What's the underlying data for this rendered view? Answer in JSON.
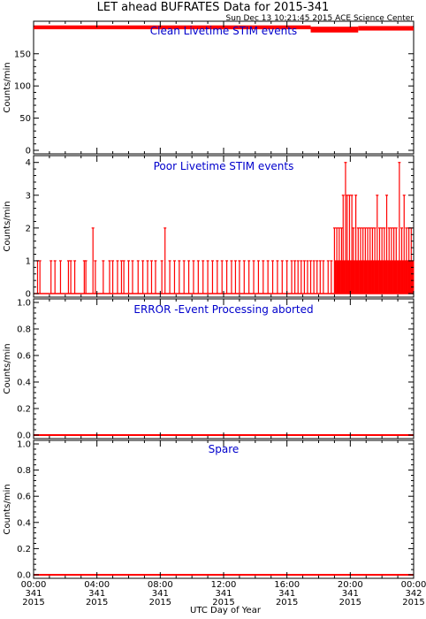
{
  "header": {
    "title": "LET ahead BUFRATES Data for 2015-341",
    "timestamp": "Sun Dec 13 10:21:45 2015 ACE Science Center"
  },
  "colors": {
    "series": "#ff0000",
    "panel_title": "#0000cc",
    "axes": "#000000"
  },
  "chart_data": [
    {
      "type": "line",
      "title": "Clean Livetime STIM events",
      "ylabel": "Counts/min",
      "ylim": [
        0,
        195
      ],
      "yticks": [
        0,
        50,
        100,
        150
      ],
      "series": [
        {
          "kind": "band",
          "segments": [
            {
              "x0": 0,
              "x1": 17.5,
              "low": 188,
              "high": 194
            },
            {
              "x0": 17.5,
              "x1": 20.5,
              "low": 183,
              "high": 192
            },
            {
              "x0": 20.5,
              "x1": 24,
              "low": 186,
              "high": 193
            }
          ]
        }
      ]
    },
    {
      "type": "line",
      "title": "Poor Livetime STIM events",
      "ylabel": "Counts/min",
      "ylim": [
        0,
        4.1
      ],
      "yticks": [
        0,
        1,
        2,
        3,
        4
      ],
      "series": [
        {
          "kind": "spikes",
          "points": [
            [
              0.25,
              1
            ],
            [
              0.4,
              1
            ],
            [
              1.1,
              1
            ],
            [
              1.35,
              1
            ],
            [
              1.7,
              1
            ],
            [
              2.2,
              1
            ],
            [
              2.35,
              1
            ],
            [
              2.6,
              1
            ],
            [
              3.2,
              1
            ],
            [
              3.3,
              1
            ],
            [
              3.75,
              2
            ],
            [
              3.9,
              1
            ],
            [
              4.4,
              1
            ],
            [
              4.8,
              1
            ],
            [
              5.0,
              1
            ],
            [
              5.3,
              1
            ],
            [
              5.55,
              1
            ],
            [
              5.7,
              1
            ],
            [
              6.0,
              1
            ],
            [
              6.25,
              1
            ],
            [
              6.6,
              1
            ],
            [
              6.9,
              1
            ],
            [
              7.2,
              1
            ],
            [
              7.45,
              1
            ],
            [
              7.7,
              1
            ],
            [
              8.1,
              1
            ],
            [
              8.3,
              2
            ],
            [
              8.6,
              1
            ],
            [
              8.9,
              1
            ],
            [
              9.2,
              1
            ],
            [
              9.5,
              1
            ],
            [
              9.8,
              1
            ],
            [
              10.1,
              1
            ],
            [
              10.4,
              1
            ],
            [
              10.7,
              1
            ],
            [
              11.0,
              1
            ],
            [
              11.3,
              1
            ],
            [
              11.6,
              1
            ],
            [
              11.9,
              1
            ],
            [
              12.2,
              1
            ],
            [
              12.5,
              1
            ],
            [
              12.75,
              1
            ],
            [
              13.0,
              1
            ],
            [
              13.3,
              1
            ],
            [
              13.6,
              1
            ],
            [
              13.9,
              1
            ],
            [
              14.2,
              1
            ],
            [
              14.5,
              1
            ],
            [
              14.8,
              1
            ],
            [
              15.1,
              1
            ],
            [
              15.4,
              1
            ],
            [
              15.7,
              1
            ],
            [
              16.0,
              1
            ],
            [
              16.3,
              1
            ],
            [
              16.5,
              1
            ],
            [
              16.7,
              1
            ],
            [
              16.9,
              1
            ],
            [
              17.1,
              1
            ],
            [
              17.3,
              1
            ],
            [
              17.5,
              1
            ],
            [
              17.7,
              1
            ],
            [
              17.9,
              1
            ],
            [
              18.1,
              1
            ],
            [
              18.3,
              1
            ],
            [
              18.6,
              1
            ],
            [
              18.8,
              1
            ],
            [
              19.0,
              2
            ],
            [
              19.15,
              2
            ],
            [
              19.3,
              2
            ],
            [
              19.45,
              2
            ],
            [
              19.55,
              3
            ],
            [
              19.7,
              4
            ],
            [
              19.8,
              3
            ],
            [
              19.95,
              3
            ],
            [
              20.1,
              3
            ],
            [
              20.2,
              2
            ],
            [
              20.35,
              3
            ],
            [
              20.5,
              2
            ],
            [
              20.65,
              2
            ],
            [
              20.8,
              2
            ],
            [
              20.95,
              2
            ],
            [
              21.1,
              2
            ],
            [
              21.25,
              2
            ],
            [
              21.4,
              2
            ],
            [
              21.55,
              2
            ],
            [
              21.7,
              3
            ],
            [
              21.85,
              2
            ],
            [
              22.0,
              2
            ],
            [
              22.15,
              2
            ],
            [
              22.3,
              3
            ],
            [
              22.45,
              2
            ],
            [
              22.6,
              2
            ],
            [
              22.75,
              2
            ],
            [
              22.9,
              2
            ],
            [
              23.1,
              4
            ],
            [
              23.25,
              2
            ],
            [
              23.4,
              3
            ],
            [
              23.55,
              2
            ],
            [
              23.7,
              2
            ],
            [
              23.85,
              2
            ]
          ],
          "dense_region": {
            "x0": 19.0,
            "x1": 24.0,
            "level": 1
          }
        }
      ]
    },
    {
      "type": "line",
      "title": "ERROR -Event Processing aborted",
      "ylabel": "Counts/min",
      "ylim": [
        0,
        1.0
      ],
      "yticks": [
        0.0,
        0.2,
        0.4,
        0.6,
        0.8,
        1.0
      ],
      "series": [
        {
          "kind": "flat",
          "value": 0
        }
      ]
    },
    {
      "type": "line",
      "title": "Spare",
      "ylabel": "Counts/min",
      "ylim": [
        0,
        1.0
      ],
      "yticks": [
        0.0,
        0.2,
        0.4,
        0.6,
        0.8,
        1.0
      ],
      "series": [
        {
          "kind": "flat",
          "value": 0
        }
      ]
    }
  ],
  "xaxis": {
    "label": "UTC Day of Year",
    "xlim": [
      0,
      24
    ],
    "ticks": [
      {
        "hour": 0,
        "time": "00:00",
        "day": "341",
        "year": "2015"
      },
      {
        "hour": 4,
        "time": "04:00",
        "day": "341",
        "year": "2015"
      },
      {
        "hour": 8,
        "time": "08:00",
        "day": "341",
        "year": "2015"
      },
      {
        "hour": 12,
        "time": "12:00",
        "day": "341",
        "year": "2015"
      },
      {
        "hour": 16,
        "time": "16:00",
        "day": "341",
        "year": "2015"
      },
      {
        "hour": 20,
        "time": "20:00",
        "day": "341",
        "year": "2015"
      },
      {
        "hour": 24,
        "time": "00:00",
        "day": "342",
        "year": "2015"
      }
    ]
  }
}
